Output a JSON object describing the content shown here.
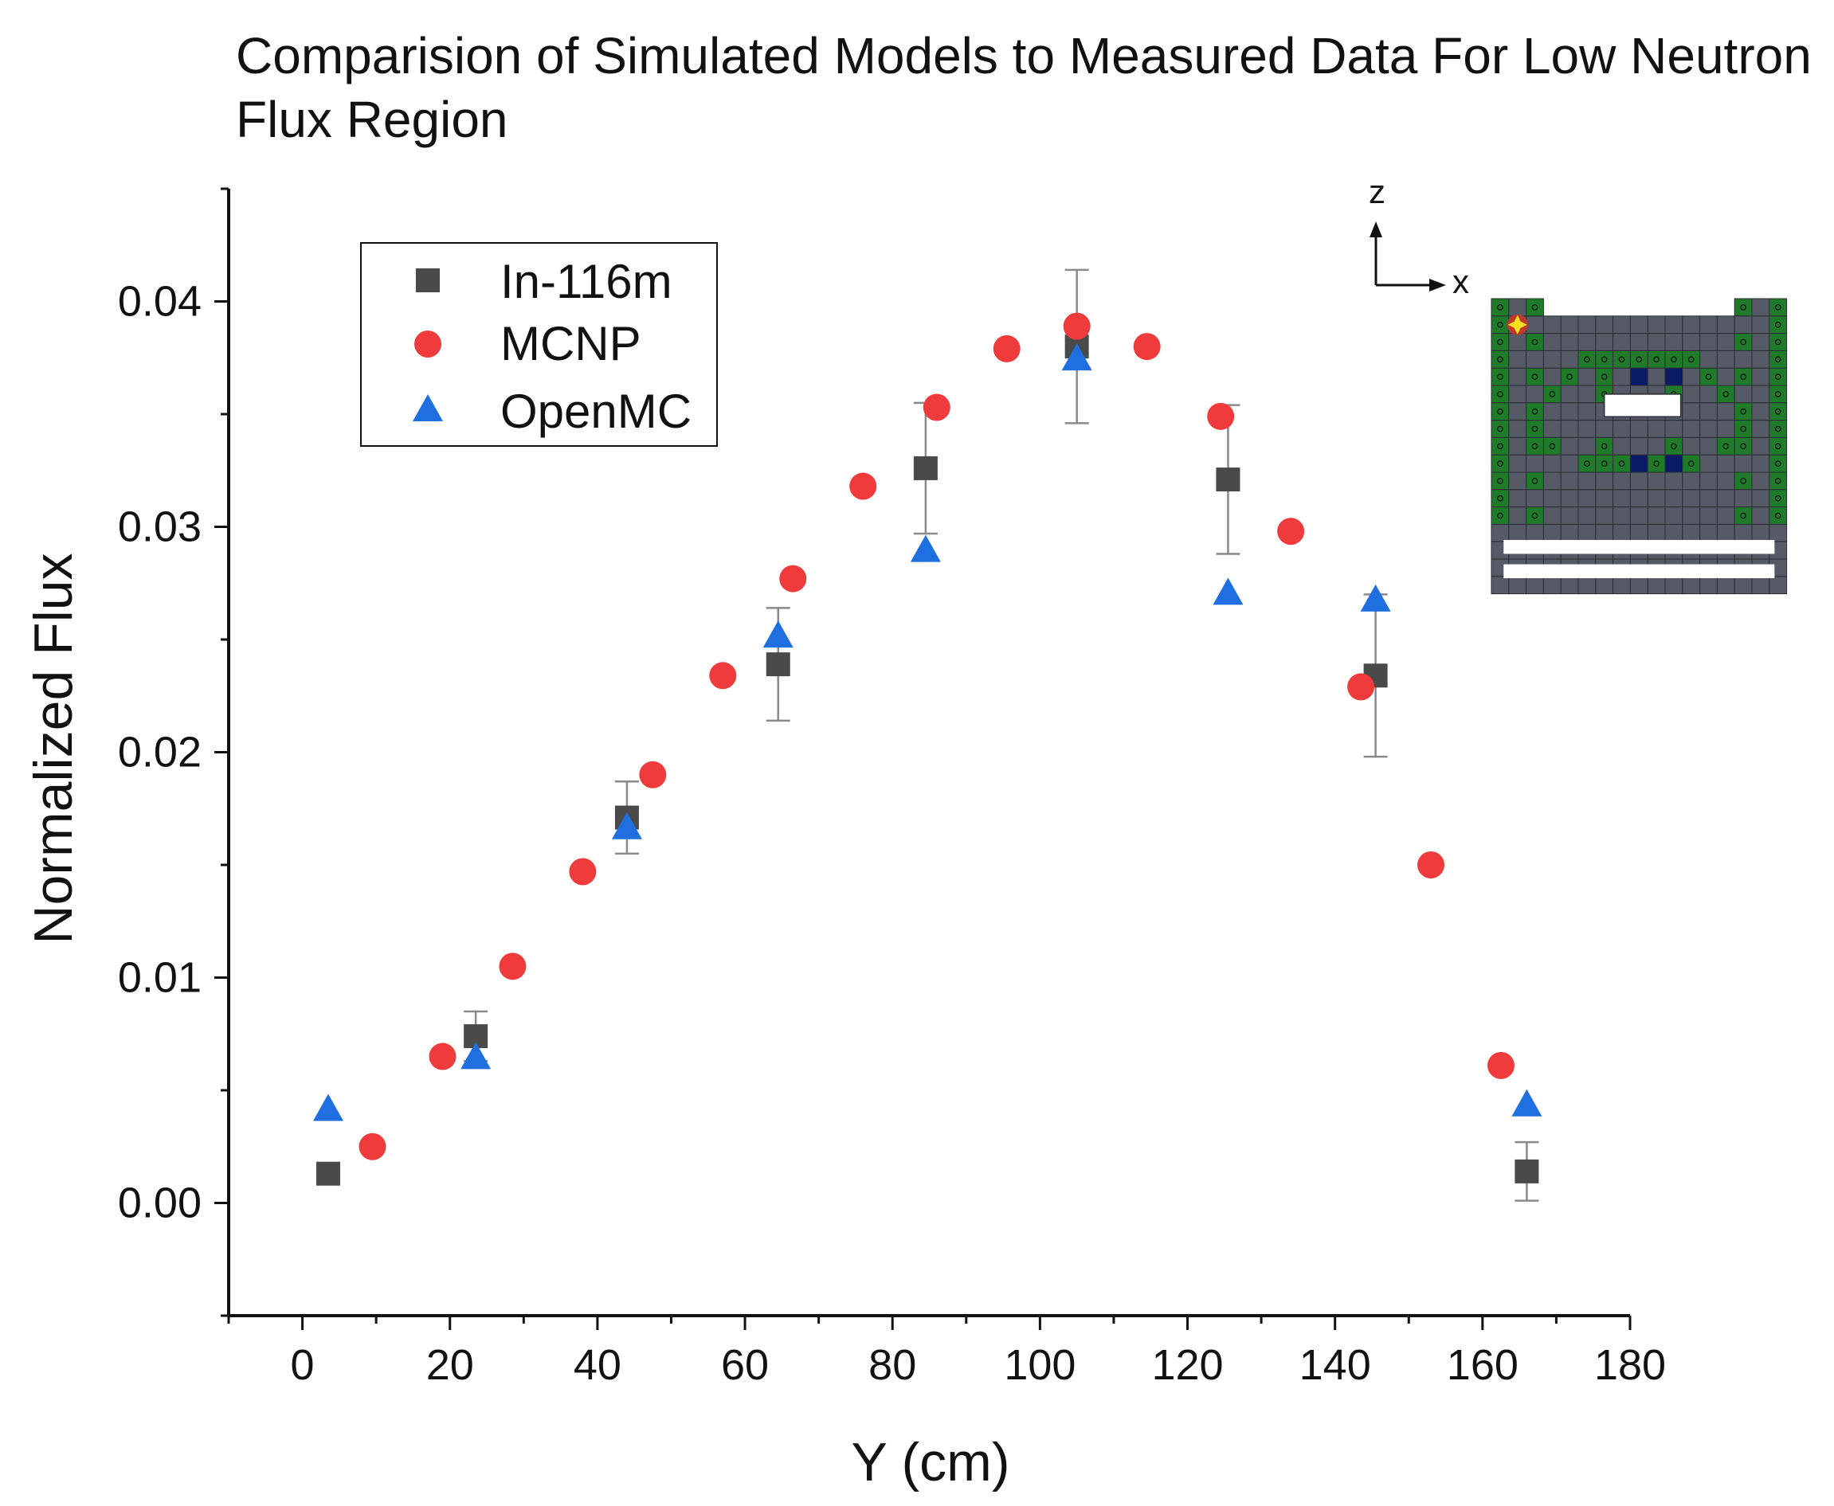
{
  "chart_data": {
    "type": "scatter",
    "title": "Comparision of Simulated Models to Measured Data For Low Neutron Flux Region",
    "xlabel": "Y (cm)",
    "ylabel": "Normalized Flux",
    "xlim": [
      -10,
      180
    ],
    "ylim": [
      -0.005,
      0.045
    ],
    "xticks": [
      0,
      20,
      40,
      60,
      80,
      100,
      120,
      140,
      160,
      180
    ],
    "yticks": [
      0.0,
      0.01,
      0.02,
      0.03,
      0.04
    ],
    "xtick_labels": [
      "0",
      "20",
      "40",
      "60",
      "80",
      "100",
      "120",
      "140",
      "160",
      "180"
    ],
    "ytick_labels": [
      "0.00",
      "0.01",
      "0.02",
      "0.03",
      "0.04"
    ],
    "legend_position": "top-left",
    "grid": false,
    "series": [
      {
        "name": "In-116m",
        "marker": "square",
        "color": "#4a4a4a",
        "points": [
          {
            "x": 3.5,
            "y": 0.0013,
            "err": null
          },
          {
            "x": 23.5,
            "y": 0.0074,
            "err": 0.0011
          },
          {
            "x": 44,
            "y": 0.0171,
            "err": 0.0016
          },
          {
            "x": 64.5,
            "y": 0.0239,
            "err": 0.0025
          },
          {
            "x": 84.5,
            "y": 0.0326,
            "err": 0.0029
          },
          {
            "x": 105,
            "y": 0.038,
            "err": 0.0034
          },
          {
            "x": 125.5,
            "y": 0.0321,
            "err": 0.0033
          },
          {
            "x": 145.5,
            "y": 0.0234,
            "err": 0.0036
          },
          {
            "x": 166,
            "y": 0.0014,
            "err": 0.0013
          }
        ]
      },
      {
        "name": "MCNP",
        "marker": "circle",
        "color": "#ef3b3b",
        "points": [
          {
            "x": 9.5,
            "y": 0.0025
          },
          {
            "x": 19,
            "y": 0.0065
          },
          {
            "x": 28.5,
            "y": 0.0105
          },
          {
            "x": 38,
            "y": 0.0147
          },
          {
            "x": 47.5,
            "y": 0.019
          },
          {
            "x": 57,
            "y": 0.0234
          },
          {
            "x": 66.5,
            "y": 0.0277
          },
          {
            "x": 76,
            "y": 0.0318
          },
          {
            "x": 86,
            "y": 0.0353
          },
          {
            "x": 95.5,
            "y": 0.0379
          },
          {
            "x": 105,
            "y": 0.0389
          },
          {
            "x": 114.5,
            "y": 0.038
          },
          {
            "x": 124.5,
            "y": 0.0349
          },
          {
            "x": 134,
            "y": 0.0298
          },
          {
            "x": 143.5,
            "y": 0.0229
          },
          {
            "x": 153,
            "y": 0.015
          },
          {
            "x": 162.5,
            "y": 0.0061
          }
        ]
      },
      {
        "name": "OpenMC",
        "marker": "triangle",
        "color": "#1f6fe0",
        "points": [
          {
            "x": 3.5,
            "y": 0.0041
          },
          {
            "x": 23.5,
            "y": 0.0064
          },
          {
            "x": 44,
            "y": 0.0166
          },
          {
            "x": 64.5,
            "y": 0.0251
          },
          {
            "x": 84.5,
            "y": 0.0289
          },
          {
            "x": 105,
            "y": 0.0374
          },
          {
            "x": 125.5,
            "y": 0.027
          },
          {
            "x": 145.5,
            "y": 0.0267
          },
          {
            "x": 166,
            "y": 0.0043
          }
        ]
      }
    ]
  },
  "inset": {
    "axis_z_label": "z",
    "axis_x_label": "x"
  },
  "colors": {
    "grid_cell": "#555a66",
    "fuel_cell": "#1f7a2a",
    "dark_cell": "#0a1a66",
    "marker_star": "#f5e11e"
  }
}
